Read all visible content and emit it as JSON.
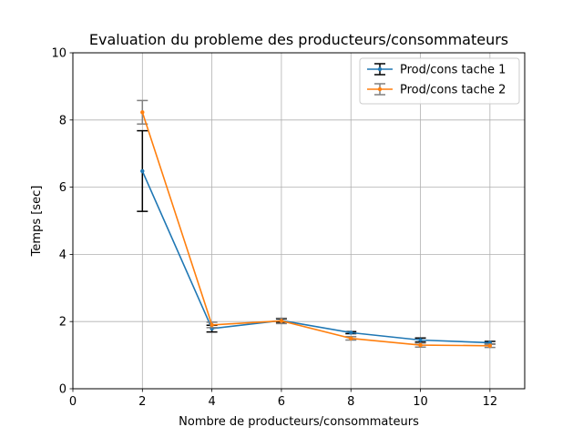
{
  "chart_data": {
    "type": "line",
    "title": "Evaluation du probleme des producteurs/consommateurs",
    "xlabel": "Nombre de producteurs/consommateurs",
    "ylabel": "Temps [sec]",
    "xlim": [
      0,
      13
    ],
    "ylim": [
      0,
      10
    ],
    "xticks": [
      0,
      2,
      4,
      6,
      8,
      10,
      12
    ],
    "yticks": [
      0,
      2,
      4,
      6,
      8,
      10
    ],
    "grid": true,
    "legend_position": "top-right",
    "x": [
      2,
      4,
      6,
      8,
      10,
      12
    ],
    "series": [
      {
        "name": "Prod/cons tache 1",
        "color": "#1f77b4",
        "errorbar_color": "#000000",
        "values": [
          6.48,
          1.79,
          2.03,
          1.67,
          1.45,
          1.37
        ],
        "errors": [
          1.2,
          0.1,
          0.05,
          0.03,
          0.06,
          0.04
        ]
      },
      {
        "name": "Prod/cons tache 2",
        "color": "#ff7f0e",
        "errorbar_color": "#808080",
        "values": [
          8.23,
          1.9,
          2.02,
          1.5,
          1.3,
          1.28
        ],
        "errors": [
          0.35,
          0.08,
          0.08,
          0.05,
          0.06,
          0.05
        ]
      }
    ]
  }
}
